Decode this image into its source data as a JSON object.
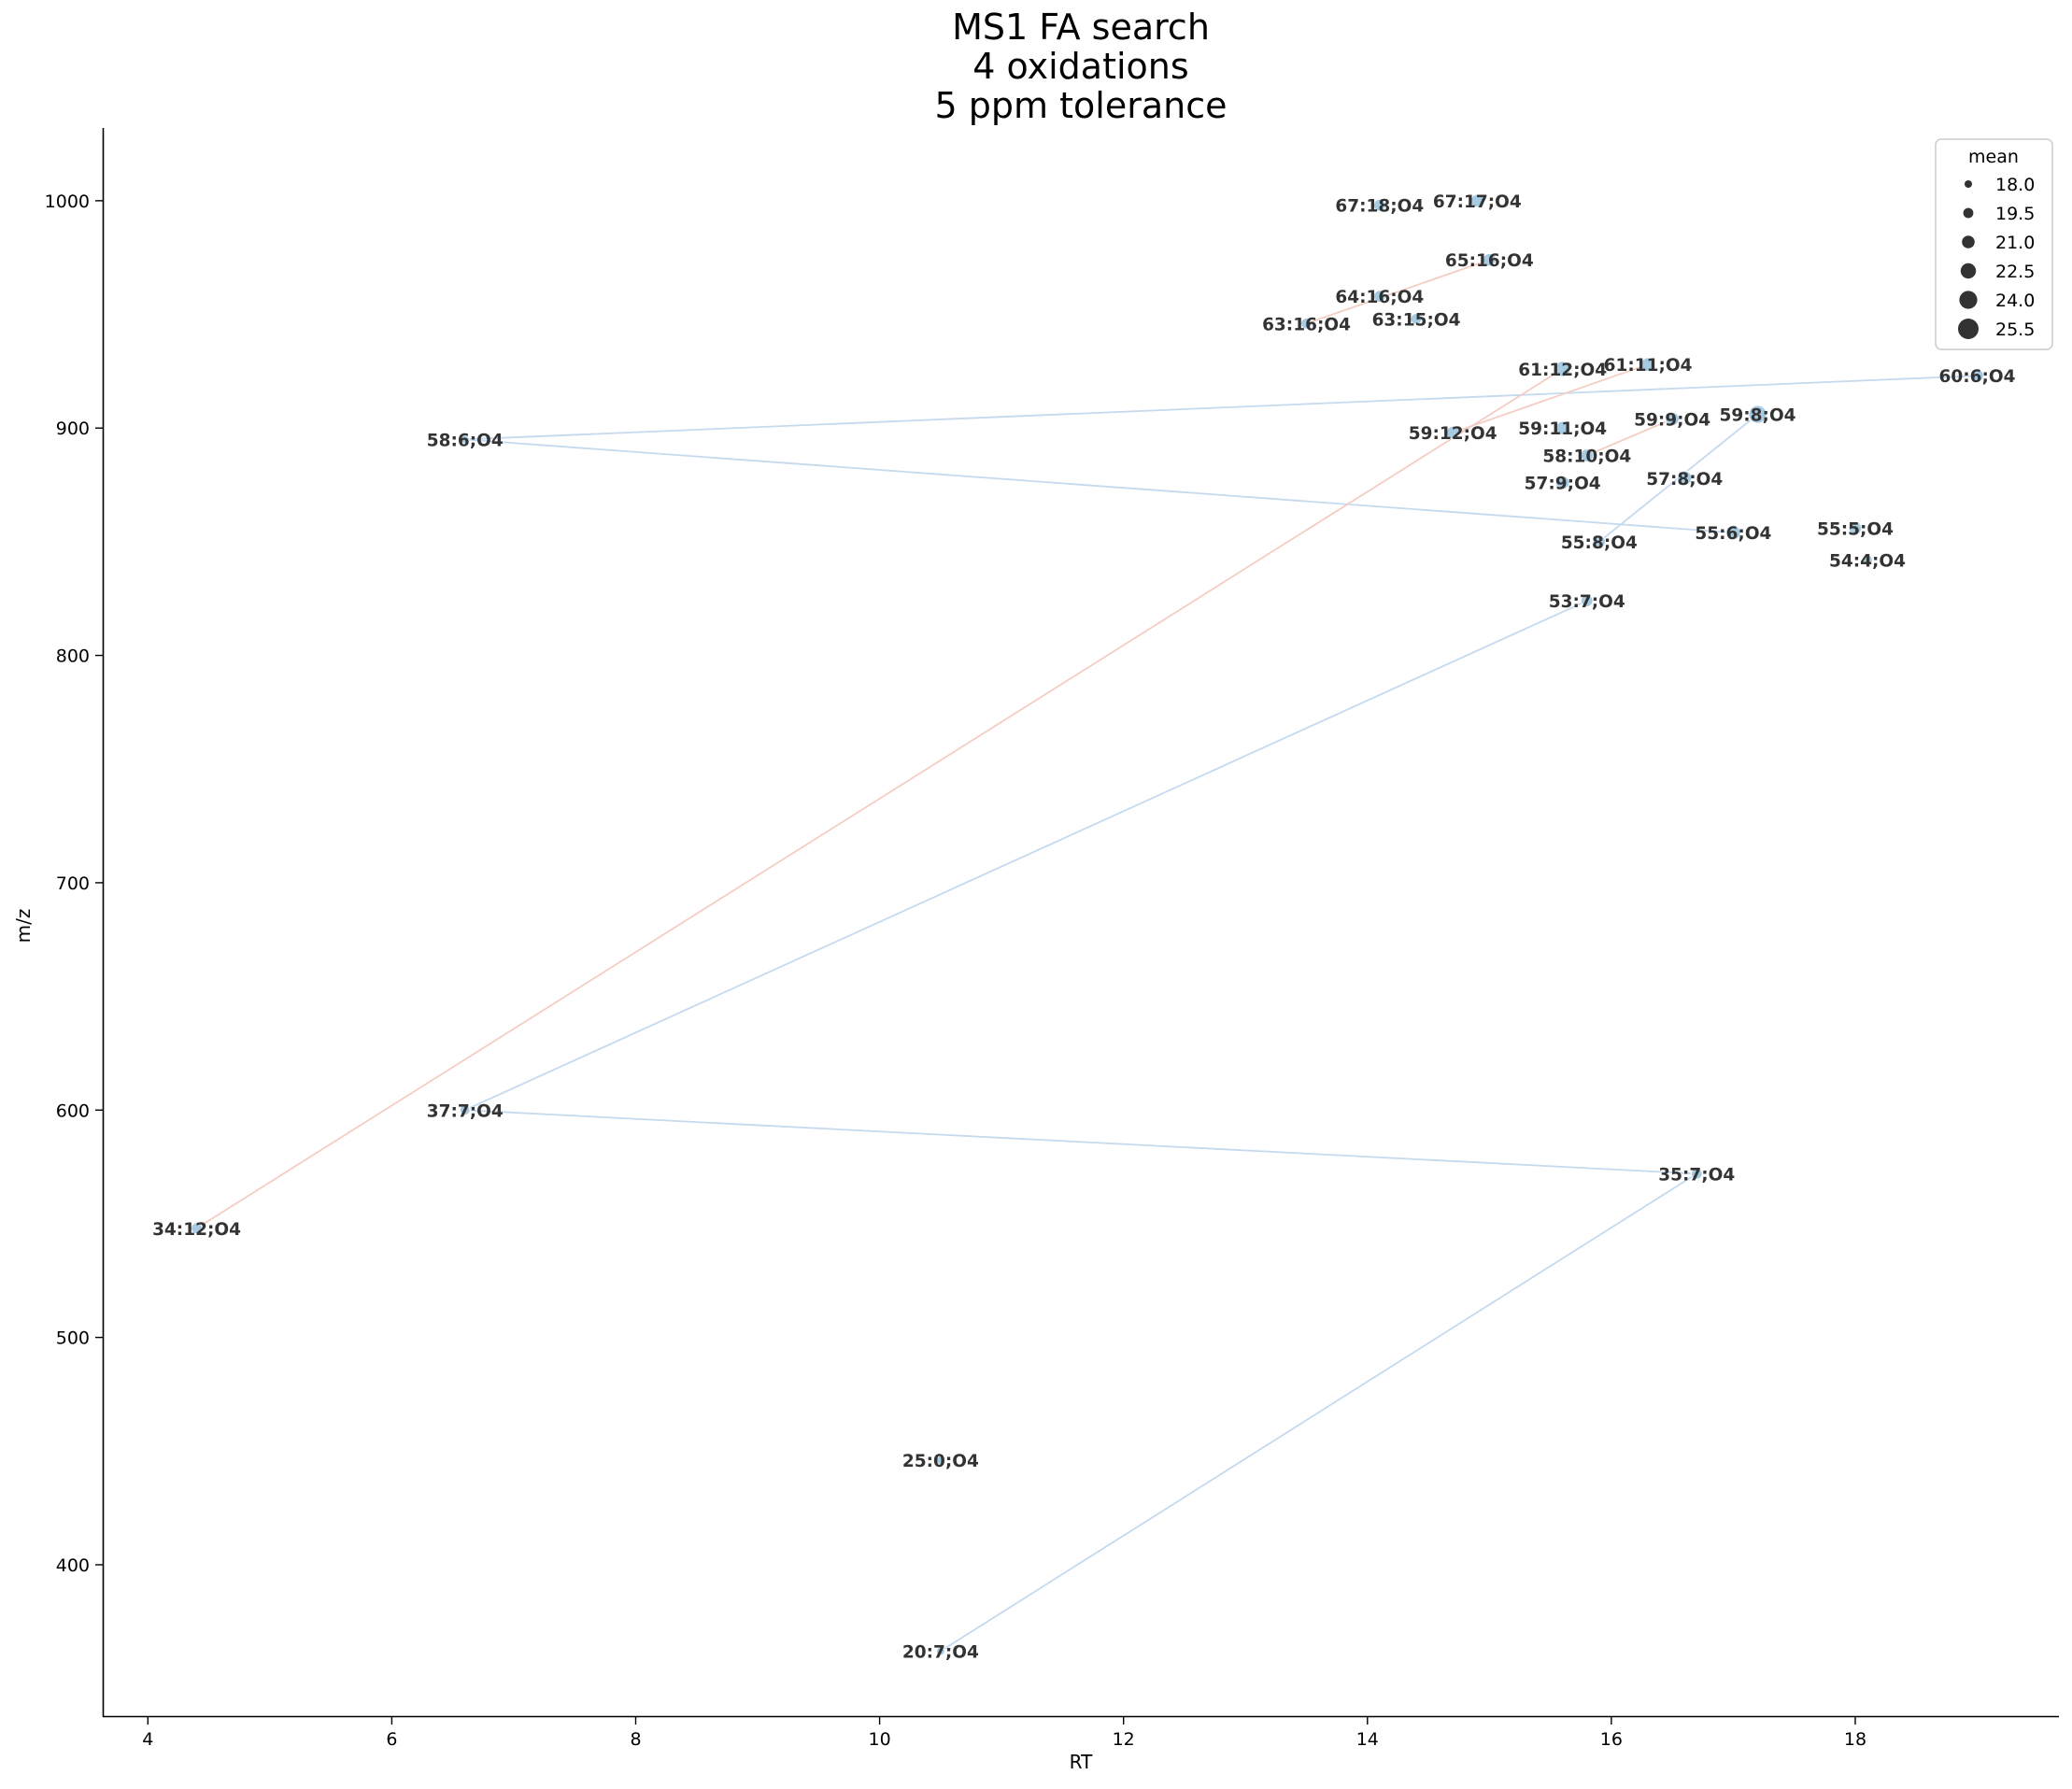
{
  "chart_data": {
    "type": "scatter",
    "title": [
      "MS1 FA search",
      "4 oxidations",
      "5 ppm tolerance"
    ],
    "xlabel": "RT",
    "ylabel": "m/z",
    "xlim": [
      3.63,
      19.67
    ],
    "ylim": [
      333,
      1032
    ],
    "xticks": [
      4,
      6,
      8,
      10,
      12,
      14,
      16,
      18
    ],
    "yticks": [
      400,
      500,
      600,
      700,
      800,
      900,
      1000
    ],
    "grid": false,
    "legend": {
      "title": "mean",
      "placement": "top-right",
      "entries": [
        {
          "label": "18.0",
          "size": 18.0
        },
        {
          "label": "19.5",
          "size": 19.5
        },
        {
          "label": "21.0",
          "size": 21.0
        },
        {
          "label": "22.5",
          "size": 22.5
        },
        {
          "label": "24.0",
          "size": 24.0
        },
        {
          "label": "25.5",
          "size": 25.5
        }
      ]
    },
    "colors": {
      "point": "#a6cbe3",
      "edge": "#ffffff",
      "line_blue": "#c5d9ef",
      "line_red": "#f4cdc4",
      "label": "#333333"
    },
    "points": [
      {
        "label": "67:18;O4",
        "rt": 14.1,
        "mz": 998,
        "mean": 20.5
      },
      {
        "label": "67:17;O4",
        "rt": 14.9,
        "mz": 1000,
        "mean": 21.0
      },
      {
        "label": "65:16;O4",
        "rt": 15.0,
        "mz": 974,
        "mean": 21.0
      },
      {
        "label": "64:16;O4",
        "rt": 14.1,
        "mz": 958,
        "mean": 20.5
      },
      {
        "label": "63:16;O4",
        "rt": 13.5,
        "mz": 946,
        "mean": 20.0
      },
      {
        "label": "63:15;O4",
        "rt": 14.4,
        "mz": 948,
        "mean": 20.0
      },
      {
        "label": "61:12;O4",
        "rt": 15.6,
        "mz": 926,
        "mean": 22.5
      },
      {
        "label": "61:11;O4",
        "rt": 16.3,
        "mz": 928,
        "mean": 21.5
      },
      {
        "label": "60:6;O4",
        "rt": 19.0,
        "mz": 923,
        "mean": 21.0
      },
      {
        "label": "58:6;O4",
        "rt": 6.6,
        "mz": 895,
        "mean": 18.5
      },
      {
        "label": "59:12;O4",
        "rt": 14.7,
        "mz": 898,
        "mean": 21.0
      },
      {
        "label": "59:11;O4",
        "rt": 15.6,
        "mz": 900,
        "mean": 21.5
      },
      {
        "label": "59:9;O4",
        "rt": 16.5,
        "mz": 904,
        "mean": 21.5
      },
      {
        "label": "59:8;O4",
        "rt": 17.2,
        "mz": 906,
        "mean": 24.0
      },
      {
        "label": "58:10;O4",
        "rt": 15.8,
        "mz": 888,
        "mean": 21.0
      },
      {
        "label": "57:9;O4",
        "rt": 15.6,
        "mz": 876,
        "mean": 21.5
      },
      {
        "label": "57:8;O4",
        "rt": 16.6,
        "mz": 878,
        "mean": 22.0
      },
      {
        "label": "55:8;O4",
        "rt": 15.9,
        "mz": 850,
        "mean": 21.0
      },
      {
        "label": "55:6;O4",
        "rt": 17.0,
        "mz": 854,
        "mean": 22.0
      },
      {
        "label": "55:5;O4",
        "rt": 18.0,
        "mz": 856,
        "mean": 21.0
      },
      {
        "label": "54:4;O4",
        "rt": 18.1,
        "mz": 842,
        "mean": 19.5
      },
      {
        "label": "53:7;O4",
        "rt": 15.8,
        "mz": 824,
        "mean": 20.5
      },
      {
        "label": "37:7;O4",
        "rt": 6.6,
        "mz": 600,
        "mean": 19.5
      },
      {
        "label": "35:7;O4",
        "rt": 16.7,
        "mz": 572,
        "mean": 20.0
      },
      {
        "label": "34:12;O4",
        "rt": 4.4,
        "mz": 548,
        "mean": 20.0
      },
      {
        "label": "25:0;O4",
        "rt": 10.5,
        "mz": 446,
        "mean": 18.5
      },
      {
        "label": "20:7;O4",
        "rt": 10.5,
        "mz": 362,
        "mean": 18.5
      }
    ],
    "connections": [
      {
        "from": "58:6;O4",
        "to": "60:6;O4",
        "color": "blue"
      },
      {
        "from": "58:6;O4",
        "to": "55:6;O4",
        "color": "blue"
      },
      {
        "from": "37:7;O4",
        "to": "35:7;O4",
        "color": "blue"
      },
      {
        "from": "37:7;O4",
        "to": "53:7;O4",
        "color": "blue"
      },
      {
        "from": "20:7;O4",
        "to": "35:7;O4",
        "color": "blue"
      },
      {
        "from": "55:8;O4",
        "to": "59:8;O4",
        "color": "blue"
      },
      {
        "from": "34:12;O4",
        "to": "61:12;O4",
        "color": "red"
      },
      {
        "from": "59:12;O4",
        "to": "61:11;O4",
        "color": "red"
      },
      {
        "from": "63:16;O4",
        "to": "65:16;O4",
        "color": "red"
      },
      {
        "from": "58:10;O4",
        "to": "59:9;O4",
        "color": "red"
      }
    ]
  }
}
